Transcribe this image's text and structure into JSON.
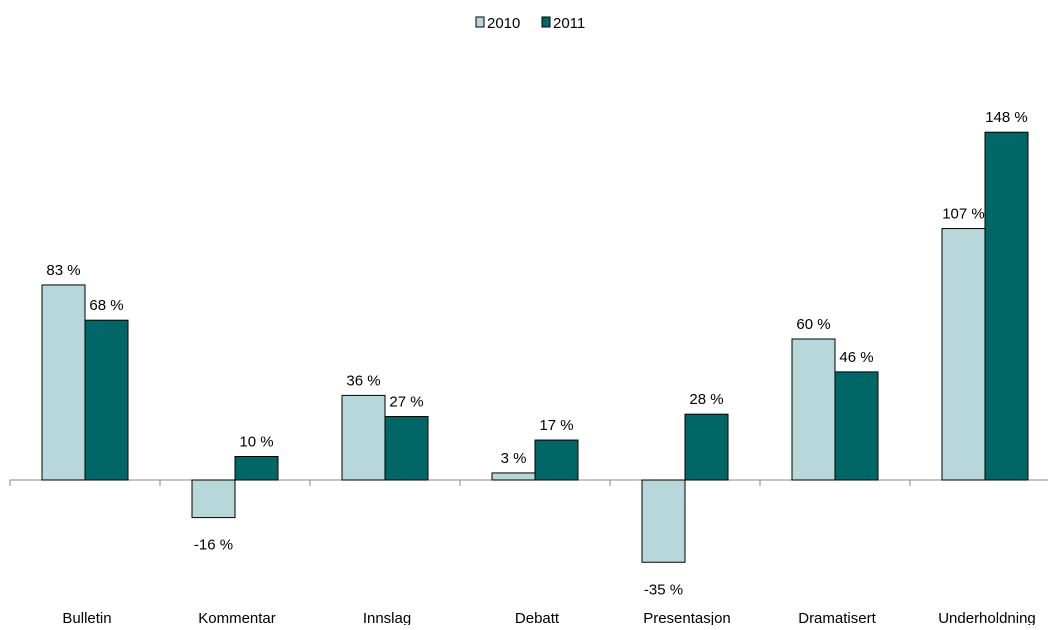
{
  "chart_data": {
    "type": "bar",
    "categories": [
      "Bulletin",
      "Kommentar",
      "Innslag",
      "Debatt",
      "Presentasjon",
      "Dramatisert",
      "Underholdning"
    ],
    "series": [
      {
        "name": "2010",
        "values": [
          83,
          -16,
          36,
          3,
          -35,
          60,
          107
        ],
        "labels": [
          "83 %",
          "-16 %",
          "36 %",
          "3 %",
          "-35 %",
          "60 %",
          "107 %"
        ],
        "color": "#b7d7da"
      },
      {
        "name": "2011",
        "values": [
          68,
          10,
          27,
          17,
          28,
          46,
          148
        ],
        "labels": [
          "68 %",
          "10 %",
          "27 %",
          "17 %",
          "28 %",
          "46 %",
          "148 %"
        ],
        "color": "#006666"
      }
    ],
    "ylim": [
      -50,
      150
    ],
    "grid": false,
    "legend": "top-center",
    "xlabel": "",
    "ylabel": "",
    "title": ""
  }
}
